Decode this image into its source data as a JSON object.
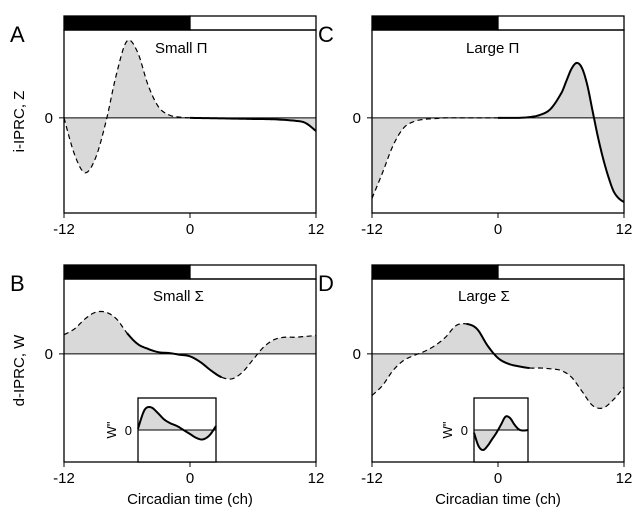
{
  "chart_data": [
    {
      "panel": "A",
      "type": "line",
      "title": "Small Π",
      "ylabel": "i-IPRC, Z",
      "xlabel": "",
      "xlim": [
        -12,
        12
      ],
      "x_ticks": [
        "-12",
        "0",
        "12"
      ],
      "y_ticks": [
        "0"
      ],
      "ylim": [
        -1.3,
        1.2
      ],
      "light_dark_bar": {
        "dark": [
          -12,
          0
        ],
        "light": [
          0,
          12
        ]
      },
      "solid_range": [
        0,
        12
      ],
      "x": [
        -12,
        -11,
        -10,
        -9,
        -8,
        -7,
        -6,
        -5,
        -4,
        -3,
        -2,
        -1,
        0,
        2,
        4,
        6,
        8,
        10,
        11,
        12
      ],
      "y": [
        0,
        -0.5,
        -0.75,
        -0.55,
        -0.05,
        0.6,
        1.05,
        0.9,
        0.45,
        0.15,
        0.04,
        0.01,
        0.0,
        -0.005,
        -0.01,
        -0.015,
        -0.02,
        -0.04,
        -0.07,
        -0.18
      ]
    },
    {
      "panel": "B",
      "type": "line",
      "title": "Small Σ",
      "ylabel": "d-IPRC, W",
      "xlabel": "Circadian time (ch)",
      "xlim": [
        -12,
        12
      ],
      "x_ticks": [
        "-12",
        "0",
        "12"
      ],
      "y_ticks": [
        "0"
      ],
      "ylim": [
        -1.3,
        0.9
      ],
      "light_dark_bar": {
        "dark": [
          -12,
          0
        ],
        "light": [
          0,
          12
        ]
      },
      "solid_range": [
        -6,
        3
      ],
      "x": [
        -12,
        -11,
        -10,
        -9,
        -8,
        -7,
        -6,
        -5,
        -4,
        -3,
        -2,
        -1,
        0,
        1,
        2,
        3,
        4,
        5,
        6,
        7,
        8,
        9,
        10,
        11,
        12
      ],
      "y": [
        0.23,
        0.3,
        0.42,
        0.5,
        0.5,
        0.42,
        0.25,
        0.12,
        0.06,
        0.02,
        0.01,
        -0.01,
        -0.03,
        -0.1,
        -0.2,
        -0.28,
        -0.3,
        -0.22,
        -0.07,
        0.08,
        0.17,
        0.2,
        0.2,
        0.21,
        0.22
      ],
      "inset": {
        "ylabel": "W\"",
        "y_ticks": [
          "0"
        ],
        "x": [
          -3,
          -2.5,
          -2,
          -1.5,
          -1,
          -0.5,
          0,
          0.5,
          1,
          1.5,
          2,
          2.5,
          3
        ],
        "y": [
          0.05,
          0.75,
          0.85,
          0.65,
          0.4,
          0.25,
          0.15,
          0.0,
          -0.15,
          -0.3,
          -0.35,
          -0.2,
          0.15
        ]
      }
    },
    {
      "panel": "C",
      "type": "line",
      "title": "Large Π",
      "ylabel": "",
      "xlabel": "",
      "xlim": [
        -12,
        12
      ],
      "x_ticks": [
        "-12",
        "0",
        "12"
      ],
      "y_ticks": [
        "0"
      ],
      "ylim": [
        -1.3,
        1.2
      ],
      "light_dark_bar": {
        "dark": [
          -12,
          0
        ],
        "light": [
          0,
          12
        ]
      },
      "solid_range": [
        0,
        12
      ],
      "x": [
        -12,
        -11,
        -10,
        -9,
        -8,
        -7,
        -6,
        -5,
        -4,
        -3,
        -2,
        -1,
        0,
        1,
        2,
        3,
        4,
        5,
        6,
        6.5,
        7,
        7.5,
        8,
        8.5,
        9,
        9.5,
        10,
        10.5,
        11,
        11.5,
        12
      ],
      "y": [
        -1.1,
        -0.75,
        -0.38,
        -0.14,
        -0.05,
        -0.02,
        -0.01,
        0,
        0,
        0,
        0,
        0,
        0,
        0,
        0,
        0.01,
        0.04,
        0.12,
        0.33,
        0.5,
        0.67,
        0.75,
        0.68,
        0.45,
        0.1,
        -0.25,
        -0.55,
        -0.8,
        -1.0,
        -1.1,
        -1.15
      ]
    },
    {
      "panel": "D",
      "type": "line",
      "title": "Large Σ",
      "ylabel": "",
      "xlabel": "Circadian time (ch)",
      "xlim": [
        -12,
        12
      ],
      "x_ticks": [
        "-12",
        "0",
        "12"
      ],
      "y_ticks": [
        "0"
      ],
      "ylim": [
        -1.3,
        0.9
      ],
      "light_dark_bar": {
        "dark": [
          -12,
          0
        ],
        "light": [
          0,
          12
        ]
      },
      "solid_range": [
        -3,
        3
      ],
      "x": [
        -12,
        -11,
        -10,
        -9,
        -8,
        -7,
        -6,
        -5,
        -4,
        -3,
        -2,
        -1,
        0,
        1,
        2,
        3,
        4,
        5,
        6,
        7,
        8,
        9,
        10,
        11,
        12
      ],
      "y": [
        -0.5,
        -0.38,
        -0.2,
        -0.08,
        -0.02,
        0.03,
        0.1,
        0.2,
        0.34,
        0.36,
        0.3,
        0.1,
        -0.05,
        -0.12,
        -0.15,
        -0.17,
        -0.17,
        -0.18,
        -0.2,
        -0.28,
        -0.45,
        -0.62,
        -0.65,
        -0.55,
        -0.4
      ],
      "inset": {
        "ylabel": "W\"",
        "y_ticks": [
          "0"
        ],
        "x": [
          -3,
          -2.5,
          -2,
          -1.5,
          -1,
          -0.5,
          0,
          0.5,
          1,
          1.5,
          2,
          2.5,
          3
        ],
        "y": [
          -0.1,
          -0.6,
          -0.75,
          -0.6,
          -0.35,
          -0.1,
          0.2,
          0.5,
          0.45,
          0.2,
          0.02,
          -0.02,
          0.0
        ]
      }
    }
  ],
  "colors": {
    "fill": "#d9d9d9",
    "line": "#000000",
    "dark_bar": "#000000",
    "light_bar": "#ffffff"
  }
}
